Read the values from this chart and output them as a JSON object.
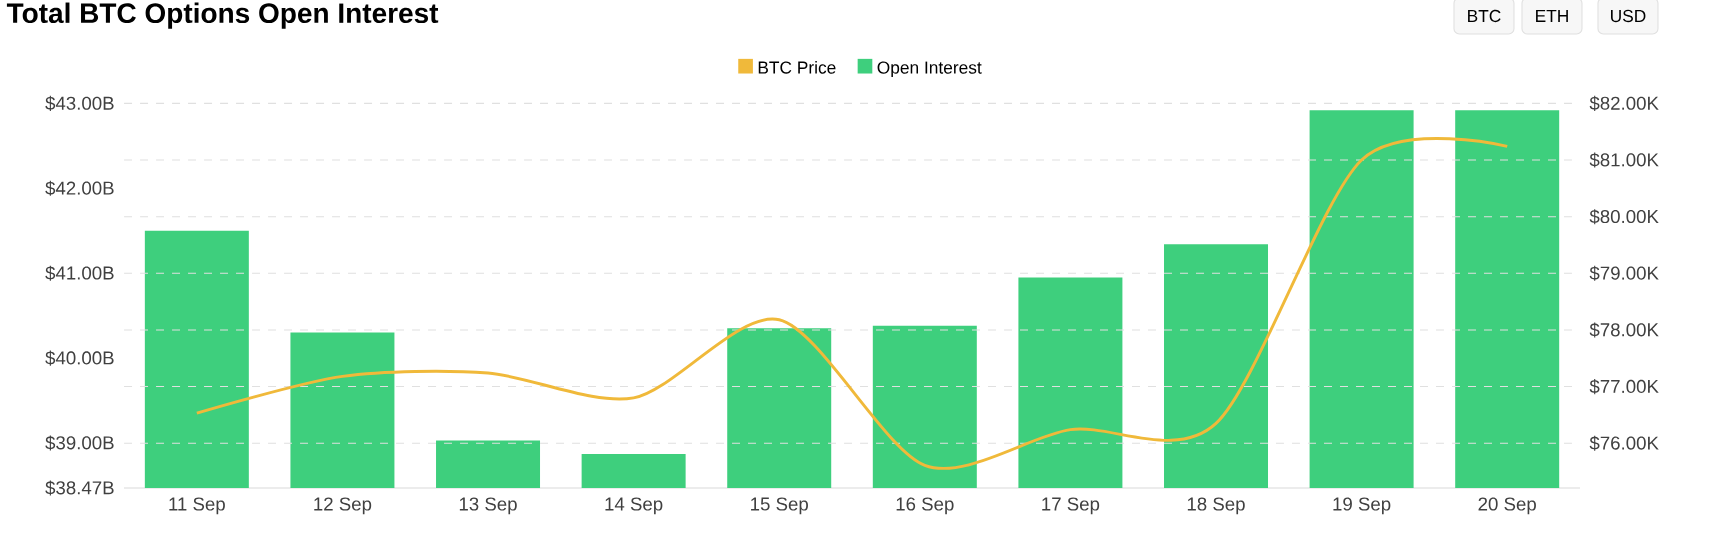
{
  "chart_data": {
    "type": "bar",
    "title": "Total BTC Options Open Interest",
    "categories": [
      "11 Sep",
      "12 Sep",
      "13 Sep",
      "14 Sep",
      "15 Sep",
      "16 Sep",
      "17 Sep",
      "18 Sep",
      "19 Sep",
      "20 Sep"
    ],
    "series": [
      {
        "name": "BTC Price",
        "type": "line",
        "axis": "y2",
        "color": "#f0b93a",
        "values": [
          76.53,
          77.18,
          77.24,
          76.8,
          78.18,
          75.61,
          76.24,
          76.35,
          81.0,
          81.24
        ]
      },
      {
        "name": "Open Interest",
        "color": "#3ecf7d",
        "values": [
          41.5,
          40.3,
          39.03,
          38.87,
          40.35,
          40.38,
          40.95,
          41.34,
          42.92,
          42.92
        ]
      }
    ],
    "ylim": [
      38.47,
      43
    ],
    "yticks": [
      {
        "value": 38.47,
        "label": "$38.47B"
      },
      {
        "value": 39,
        "label": "$39.00B"
      },
      {
        "value": 40,
        "label": "$40.00B"
      },
      {
        "value": 41,
        "label": "$41.00B"
      },
      {
        "value": 42,
        "label": "$42.00B"
      },
      {
        "value": 43,
        "label": "$43.00B"
      }
    ],
    "y2lim": [
      75.21,
      82
    ],
    "y2ticks": [
      {
        "value": 76,
        "label": "$76.00K"
      },
      {
        "value": 77,
        "label": "$77.00K"
      },
      {
        "value": 78,
        "label": "$78.00K"
      },
      {
        "value": 79,
        "label": "$79.00K"
      },
      {
        "value": 80,
        "label": "$80.00K"
      },
      {
        "value": 81,
        "label": "$81.00K"
      },
      {
        "value": 82,
        "label": "$82.00K"
      }
    ],
    "grid": true,
    "legend": "top",
    "marker": "none",
    "line_style": "solid",
    "annotations": [
      "BTC",
      "ETH",
      "USD"
    ]
  }
}
